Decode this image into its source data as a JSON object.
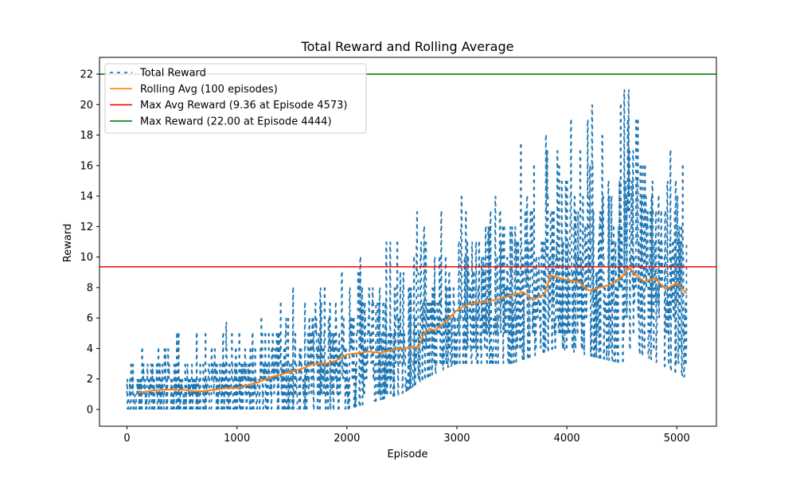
{
  "chart_data": {
    "type": "line",
    "title": "Total Reward and Rolling Average",
    "xlabel": "Episode",
    "ylabel": "Reward",
    "xlim": [
      -250,
      5360
    ],
    "ylim": [
      -1.1,
      23.1
    ],
    "xticks": [
      0,
      1000,
      2000,
      3000,
      4000,
      5000
    ],
    "yticks": [
      0,
      2,
      4,
      6,
      8,
      10,
      12,
      14,
      16,
      18,
      20,
      22
    ],
    "grid": false,
    "legend_position": "top-left",
    "series": [
      {
        "name": "Total Reward",
        "style": "dashed",
        "color": "#1f77b4",
        "range_estimate": {
          "x": [
            0,
            500,
            1000,
            1500,
            2000,
            2500,
            2700,
            3000,
            3500,
            3900,
            4500,
            4570,
            5090
          ],
          "y_min": [
            0,
            0,
            0,
            0,
            0,
            1,
            2,
            3,
            3,
            4,
            3,
            4,
            2
          ],
          "y_max": [
            3.6,
            5.5,
            5.8,
            8.5,
            9.5,
            12.5,
            13.5,
            14,
            17,
            19,
            21.5,
            21.5,
            16.5
          ]
        }
      },
      {
        "name": "Rolling Avg (100 episodes)",
        "style": "solid",
        "color": "#ff7f0e",
        "x": [
          100,
          200,
          300,
          400,
          500,
          600,
          700,
          800,
          900,
          1000,
          1100,
          1200,
          1300,
          1400,
          1500,
          1600,
          1700,
          1800,
          1900,
          2000,
          2100,
          2200,
          2300,
          2400,
          2500,
          2600,
          2650,
          2700,
          2750,
          2800,
          2900,
          3000,
          3100,
          3200,
          3300,
          3400,
          3500,
          3600,
          3700,
          3800,
          3850,
          3900,
          4000,
          4100,
          4200,
          4300,
          4400,
          4500,
          4573,
          4600,
          4700,
          4800,
          4900,
          5000,
          5090
        ],
        "y": [
          1.1,
          1.2,
          1.3,
          1.3,
          1.3,
          1.2,
          1.2,
          1.3,
          1.4,
          1.4,
          1.6,
          1.8,
          2.1,
          2.3,
          2.5,
          2.7,
          3.0,
          3.0,
          3.2,
          3.6,
          3.7,
          3.8,
          3.7,
          3.9,
          4.0,
          4.1,
          4.0,
          5.0,
          5.3,
          5.2,
          5.8,
          6.5,
          6.9,
          7.0,
          7.1,
          7.3,
          7.5,
          7.7,
          7.2,
          7.6,
          8.8,
          8.7,
          8.5,
          8.4,
          7.8,
          8.0,
          8.2,
          8.7,
          9.36,
          9.0,
          8.4,
          8.6,
          7.9,
          8.3,
          7.6
        ]
      },
      {
        "name": "Max Avg Reward (9.36 at Episode 4573)",
        "style": "hline",
        "color": "#ff0000",
        "y": 9.36
      },
      {
        "name": "Max Reward (22.00 at Episode 4444)",
        "style": "hline",
        "color": "#008000",
        "y": 22.0
      }
    ]
  }
}
